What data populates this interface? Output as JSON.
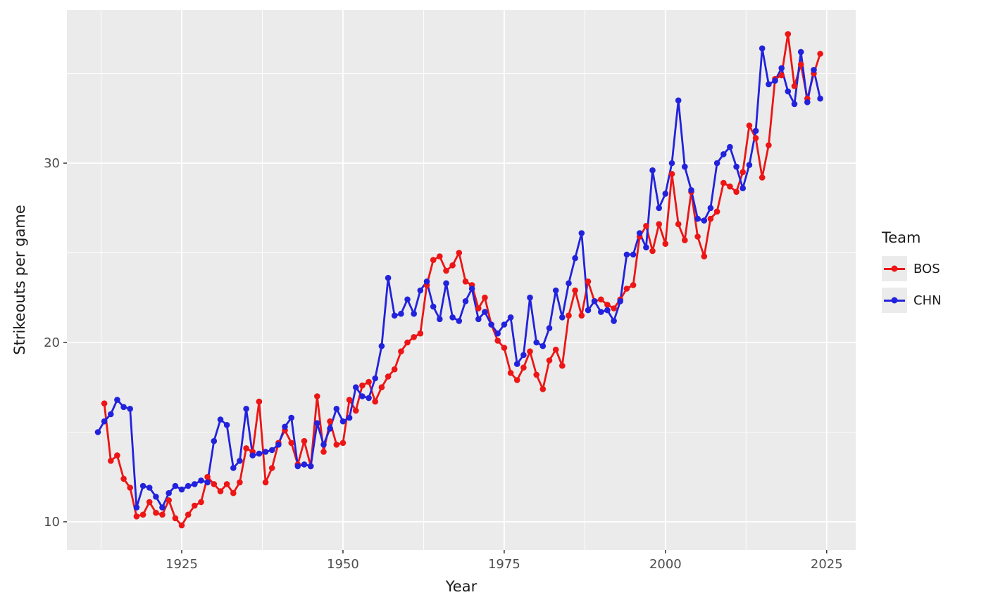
{
  "figure": {
    "type": "ggplot-line-chart"
  },
  "legend": {
    "title": "Team",
    "position": "right"
  },
  "chart_data": {
    "type": "line",
    "title": "",
    "xlabel": "Year",
    "ylabel": "Strikeouts per game",
    "xlim": [
      1907.2,
      2029.5
    ],
    "ylim": [
      8.43,
      38.55
    ],
    "x_ticks": [
      1925,
      1950,
      1975,
      2000,
      2025
    ],
    "y_ticks": [
      10,
      20,
      30
    ],
    "x_minor_ticks": [
      1912.5,
      1937.5,
      1962.5,
      1987.5,
      2012.5
    ],
    "y_minor_ticks": [
      15,
      25,
      35
    ],
    "grid": true,
    "panel_background": "#EBEBEB",
    "gridline_color": "#FFFFFF",
    "tick_label_color": "#4D4D4D",
    "axis_title_color": "#1A1A1A",
    "legend_key_background": "#EBEBEB",
    "x_unit": "year",
    "note": "values are yearly, one per consecutive year starting at year_start",
    "series": [
      {
        "name": "BOS",
        "color": "#ED1515",
        "year_start": 1913,
        "values": [
          16.6,
          13.4,
          13.7,
          12.4,
          11.9,
          10.3,
          10.4,
          11.1,
          10.5,
          10.4,
          11.2,
          10.2,
          9.8,
          10.4,
          10.9,
          11.1,
          12.5,
          12.1,
          11.7,
          12.1,
          11.6,
          12.2,
          14.1,
          13.9,
          16.7,
          12.2,
          13.0,
          14.4,
          15.1,
          14.4,
          13.2,
          14.5,
          13.1,
          17.0,
          13.9,
          15.6,
          14.3,
          14.4,
          16.8,
          16.2,
          17.6,
          17.8,
          16.7,
          17.5,
          18.1,
          18.5,
          19.5,
          20.0,
          20.3,
          20.5,
          23.2,
          24.6,
          24.8,
          24.0,
          24.3,
          25.0,
          23.4,
          23.2,
          21.9,
          22.5,
          21.0,
          20.1,
          19.7,
          18.3,
          17.9,
          18.6,
          19.5,
          18.2,
          17.4,
          19.0,
          19.6,
          18.7,
          21.5,
          22.9,
          21.5,
          23.4,
          22.3,
          22.4,
          22.1,
          21.9,
          22.4,
          23.0,
          23.2,
          25.9,
          26.5,
          25.1,
          26.6,
          25.5,
          29.4,
          26.6,
          25.7,
          28.4,
          25.9,
          24.8,
          26.9,
          27.3,
          28.9,
          28.7,
          28.4,
          29.5,
          32.1,
          31.4,
          29.2,
          31.0,
          34.7,
          34.9,
          37.2,
          34.3,
          35.5,
          33.6,
          35.0,
          36.1
        ]
      },
      {
        "name": "CHN",
        "color": "#2222DD",
        "year_start": 1912,
        "values": [
          15.0,
          15.6,
          16.0,
          16.8,
          16.4,
          16.3,
          10.8,
          12.0,
          11.9,
          11.4,
          10.8,
          11.6,
          12.0,
          11.8,
          12.0,
          12.1,
          12.3,
          12.2,
          14.5,
          15.7,
          15.4,
          13.0,
          13.4,
          16.3,
          13.7,
          13.8,
          13.9,
          14.0,
          14.3,
          15.3,
          15.8,
          13.1,
          13.2,
          13.1,
          15.5,
          14.3,
          15.2,
          16.3,
          15.6,
          15.8,
          17.5,
          17.0,
          16.9,
          18.0,
          19.8,
          23.6,
          21.5,
          21.6,
          22.4,
          21.6,
          22.9,
          23.4,
          22.0,
          21.3,
          23.3,
          21.4,
          21.2,
          22.3,
          23.0,
          21.3,
          21.7,
          21.0,
          20.5,
          21.0,
          21.4,
          18.8,
          19.3,
          22.5,
          20.0,
          19.8,
          20.8,
          22.9,
          21.4,
          23.3,
          24.7,
          26.1,
          21.8,
          22.3,
          21.7,
          21.8,
          21.2,
          22.3,
          24.9,
          24.9,
          26.1,
          25.3,
          29.6,
          27.5,
          28.3,
          30.0,
          33.5,
          29.8,
          28.5,
          26.9,
          26.8,
          27.5,
          30.0,
          30.5,
          30.9,
          29.8,
          28.6,
          29.9,
          31.8,
          36.4,
          34.4,
          34.6,
          35.3,
          34.0,
          33.3,
          36.2,
          33.4,
          35.2,
          33.6
        ]
      }
    ]
  }
}
